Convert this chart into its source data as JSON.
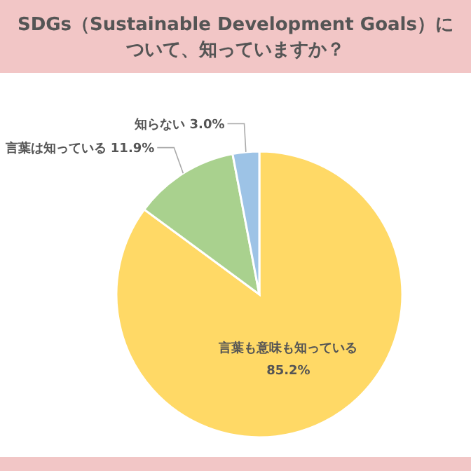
{
  "chart_data": {
    "type": "pie",
    "title": "SDGs（Sustainable Development Goals）について、知っていますか？",
    "categories": [
      "言葉も意味も知っている",
      "言葉は知っている",
      "知らない"
    ],
    "values": [
      85.2,
      11.9,
      3.0
    ],
    "colors": [
      "#ffd966",
      "#a9d18e",
      "#9dc3e6"
    ],
    "value_labels": [
      "85.2%",
      "11.9%",
      "3.0%"
    ],
    "legend": false
  }
}
